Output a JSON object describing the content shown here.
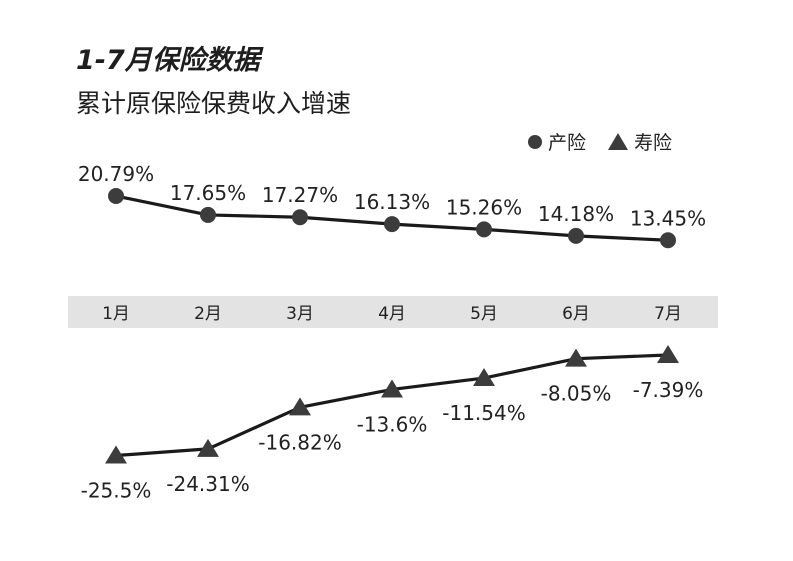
{
  "title_line1": "1-7月保险数据",
  "title_line2": "累计原保险保费收入增速",
  "colors": {
    "line": "#1a1a1a",
    "marker": "#3c3c3c",
    "band": "#e3e3e3"
  },
  "chart_data": {
    "type": "line",
    "categories": [
      "1月",
      "2月",
      "3月",
      "4月",
      "5月",
      "6月",
      "7月"
    ],
    "series": [
      {
        "name": "产险",
        "marker": "circle",
        "values": [
          20.79,
          17.65,
          17.27,
          16.13,
          15.26,
          14.18,
          13.45
        ],
        "labels": [
          "20.79%",
          "17.65%",
          "17.27%",
          "16.13%",
          "15.26%",
          "14.18%",
          "13.45%"
        ]
      },
      {
        "name": "寿险",
        "marker": "triangle",
        "values": [
          -25.5,
          -24.31,
          -16.82,
          -13.6,
          -11.54,
          -8.05,
          -7.39
        ],
        "labels": [
          "-25.5%",
          "-24.31%",
          "-16.82%",
          "-13.6%",
          "-11.54%",
          "-8.05%",
          "-7.39%"
        ]
      }
    ],
    "legend_position": "top-right",
    "grid": false
  }
}
